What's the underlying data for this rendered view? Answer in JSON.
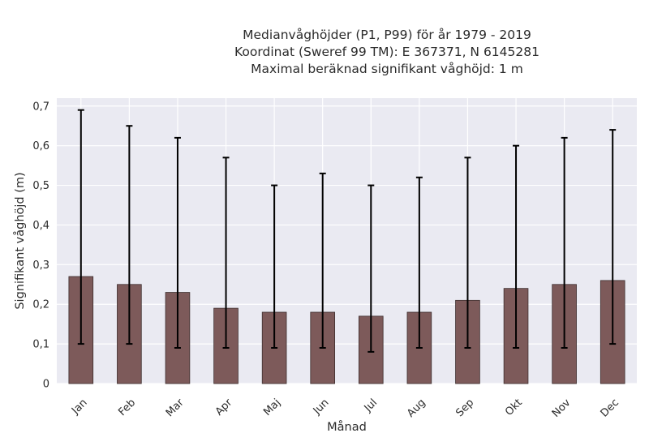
{
  "chart_data": {
    "type": "bar",
    "title_lines": [
      "Medianvåghöjder (P1, P99) för år 1979 - 2019",
      "Koordinat (Sweref 99 TM): E 367371, N 6145281",
      "Maximal beräknad signifikant våghöjd: 1 m"
    ],
    "xlabel": "Månad",
    "ylabel": "Signifikant våghöjd (m)",
    "categories": [
      "Jan",
      "Feb",
      "Mar",
      "Apr",
      "Maj",
      "Jun",
      "Jul",
      "Aug",
      "Sep",
      "Okt",
      "Nov",
      "Dec"
    ],
    "series": [
      {
        "values": [
          0.27,
          0.25,
          0.23,
          0.19,
          0.18,
          0.18,
          0.17,
          0.18,
          0.21,
          0.24,
          0.25,
          0.26
        ],
        "error_low": [
          0.1,
          0.1,
          0.09,
          0.09,
          0.09,
          0.09,
          0.08,
          0.09,
          0.09,
          0.09,
          0.09,
          0.1
        ],
        "error_high": [
          0.69,
          0.65,
          0.62,
          0.57,
          0.5,
          0.53,
          0.5,
          0.52,
          0.57,
          0.6,
          0.62,
          0.64
        ]
      }
    ],
    "ylim": [
      0,
      0.72
    ],
    "yticks": [
      0,
      0.1,
      0.2,
      0.3,
      0.4,
      0.5,
      0.6,
      0.7
    ],
    "ytick_labels": [
      "0",
      "0,1",
      "0,2",
      "0,3",
      "0,4",
      "0,5",
      "0,6",
      "0,7"
    ],
    "grid": true,
    "colors": {
      "bar": "#7d5a5a",
      "bar_edge": "#3d2e2e",
      "error": "#000000",
      "plot_bg": "#eaeaf2",
      "grid": "#ffffff"
    }
  }
}
